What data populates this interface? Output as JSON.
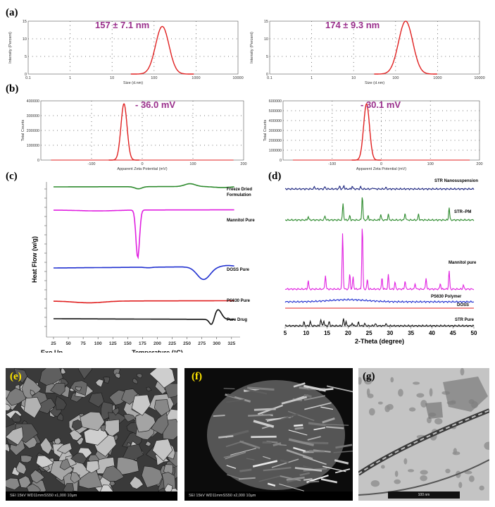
{
  "panel_labels": {
    "a": "(a)",
    "b": "(b)",
    "c": "(c)",
    "d": "(d)",
    "e": "(e)",
    "f": "(f)",
    "g": "(g)"
  },
  "chart_data": [
    {
      "id": "a1",
      "type": "line",
      "xlabel": "Size (d.nm)",
      "ylabel": "Intensity (Percent)",
      "xscale": "log",
      "xlim": [
        0.1,
        10000
      ],
      "ylim": [
        0,
        15
      ],
      "xticks": [
        "0.1",
        "1",
        "10",
        "100",
        "1000",
        "10000"
      ],
      "yticks": [
        "0",
        "5",
        "10",
        "15"
      ],
      "annotation": "157 ± 7.1 nm",
      "series": [
        {
          "color": "#e02020",
          "peak_x": 157,
          "peak_y": 13.5,
          "width_log": 0.16
        }
      ]
    },
    {
      "id": "a2",
      "type": "line",
      "xlabel": "Size (d.nm)",
      "ylabel": "Intensity (Percent)",
      "xscale": "log",
      "xlim": [
        0.1,
        10000
      ],
      "ylim": [
        0,
        15
      ],
      "xticks": [
        "0.1",
        "1",
        "10",
        "100",
        "1000",
        "10000"
      ],
      "yticks": [
        "0",
        "5",
        "10",
        "15"
      ],
      "annotation": "174 ± 9.3 nm",
      "series": [
        {
          "color": "#e02020",
          "peak_x": 174,
          "peak_y": 15,
          "width_log": 0.17
        }
      ]
    },
    {
      "id": "b1",
      "type": "line",
      "xlabel": "Apparent Zeta Potential (mV)",
      "ylabel": "Total Counts",
      "xlim": [
        -200,
        200
      ],
      "ylim": [
        0,
        400000
      ],
      "xticks": [
        "-100",
        "0",
        "100",
        "200"
      ],
      "yticks": [
        "0",
        "100000",
        "200000",
        "300000",
        "400000"
      ],
      "annotation": "- 36.0 mV",
      "series": [
        {
          "color": "#e02020",
          "peak_x": -36,
          "peak_y": 380000,
          "width": 6
        }
      ]
    },
    {
      "id": "b2",
      "type": "line",
      "xlabel": "Apparent Zeta Potential (mV)",
      "ylabel": "Total Counts",
      "xlim": [
        -200,
        200
      ],
      "ylim": [
        0,
        600000
      ],
      "xticks": [
        "-100",
        "0",
        "100",
        "200"
      ],
      "yticks": [
        "0",
        "100000",
        "200000",
        "300000",
        "400000",
        "500000",
        "600000"
      ],
      "annotation": "- 30.1 mV",
      "series": [
        {
          "color": "#e02020",
          "peak_x": -30,
          "peak_y": 570000,
          "width": 6
        }
      ]
    },
    {
      "id": "c",
      "type": "line",
      "xlabel": "Temperature (°C)",
      "ylabel": "Heat Flow (w/g)",
      "xlim": [
        25,
        330
      ],
      "xticks": [
        "25",
        "50",
        "75",
        "100",
        "125",
        "150",
        "175",
        "200",
        "225",
        "250",
        "275",
        "300",
        "325"
      ],
      "corner_label": "Exo Up",
      "series": [
        {
          "name": "Freeze Dried Formulation",
          "color": "#2e8b2e"
        },
        {
          "name": "Mannitol Pure",
          "color": "#e020e0"
        },
        {
          "name": "DOSS Pure",
          "color": "#2030d0"
        },
        {
          "name": "PS630 Pure",
          "color": "#e02020"
        },
        {
          "name": "Pure Drug",
          "color": "#111111"
        }
      ]
    },
    {
      "id": "d",
      "type": "line",
      "xlabel": "2-Theta (degree)",
      "xlim": [
        5,
        50
      ],
      "xticks": [
        "5",
        "10",
        "15",
        "20",
        "25",
        "30",
        "35",
        "40",
        "45",
        "50"
      ],
      "series": [
        {
          "name": "STR Nanosuspension",
          "color": "#1a237e"
        },
        {
          "name": "STR–PM",
          "color": "#2e8b2e"
        },
        {
          "name": "Mannitol pure",
          "color": "#e020e0"
        },
        {
          "name": "PS630 Polymer",
          "color": "#2030d0"
        },
        {
          "name": "DOSS",
          "color": "#e02020"
        },
        {
          "name": "STR Pure",
          "color": "#111111"
        }
      ]
    }
  ],
  "sem_e": {
    "bar_text": "SEI   15kV   WD11mmSS50        x1,000         10µm"
  },
  "sem_f": {
    "bar_text": "SEI   15kV   WD11mmSS50        x2,000     10µm"
  },
  "tem_g": {
    "scale_text": "100 nm"
  }
}
